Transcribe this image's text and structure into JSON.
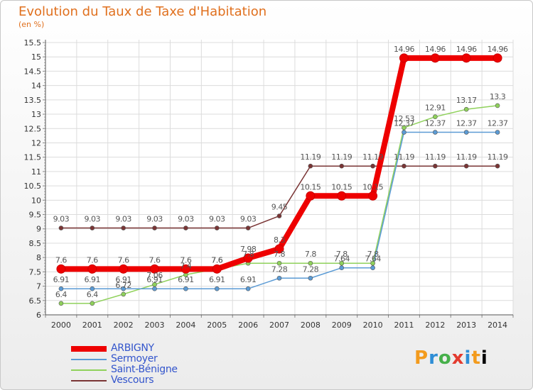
{
  "title": "Evolution du Taux de Taxe d'Habitation",
  "subtitle": "(en %)",
  "brand": {
    "letters": [
      "P",
      "r",
      "o",
      "x",
      "i",
      "t"
    ]
  },
  "chart_data": {
    "type": "line",
    "title": "Evolution du Taux de Taxe d'Habitation",
    "subtitle": "(en %)",
    "x": [
      "2000",
      "2001",
      "2002",
      "2003",
      "2004",
      "2005",
      "2006",
      "2007",
      "2008",
      "2009",
      "2010",
      "2011",
      "2012",
      "2013",
      "2014"
    ],
    "ylim": [
      6,
      15.5
    ],
    "yticks": [
      "6",
      "6.5",
      "7",
      "7.5",
      "8",
      "8.5",
      "9",
      "9.5",
      "10",
      "10.5",
      "11",
      "11.5",
      "12",
      "12.5",
      "13",
      "13.5",
      "14",
      "14.5",
      "15",
      "15.5"
    ],
    "grid": true,
    "legend_position": "bottom-left",
    "series": [
      {
        "name": "ARBIGNY",
        "color": "#ee0000",
        "values": [
          7.6,
          7.6,
          7.6,
          7.6,
          7.6,
          7.6,
          7.98,
          8.3,
          10.15,
          10.15,
          10.15,
          14.96,
          14.96,
          14.96,
          14.96
        ],
        "labels": [
          "7.6",
          "7.6",
          "7.6",
          "7.6",
          "7.6",
          "7.6",
          "7.98",
          "8.3",
          "10.15",
          "10.15",
          "10.15",
          "14.96",
          "14.96",
          "14.96",
          "14.96"
        ]
      },
      {
        "name": "Sermoyer",
        "color": "#5b9bd5",
        "values": [
          6.91,
          6.91,
          6.91,
          6.91,
          6.91,
          6.91,
          6.91,
          7.28,
          7.28,
          7.64,
          7.64,
          12.37,
          12.37,
          12.37,
          12.37
        ],
        "labels": [
          "6.91",
          "6.91",
          "6.91",
          "6.91",
          "6.91",
          "6.91",
          "6.91",
          "7.28",
          "7.28",
          "7.64",
          "7.64",
          "12.37",
          "12.37",
          "12.37",
          "12.37"
        ]
      },
      {
        "name": "Saint-Bénigne",
        "color": "#8fd15b",
        "values": [
          6.4,
          6.4,
          6.72,
          7.06,
          7.4,
          7.6,
          7.8,
          7.8,
          7.8,
          7.8,
          7.8,
          12.53,
          12.91,
          13.17,
          13.3
        ],
        "labels": [
          "6.4",
          "6.4",
          "6.72",
          "7.06",
          "7.4",
          "7.6",
          "7.8",
          "7.8",
          "7.8",
          "7.8",
          "7.8",
          "12.53",
          "12.91",
          "13.17",
          "13.3"
        ]
      },
      {
        "name": "Vescours",
        "color": "#7a3535",
        "values": [
          9.03,
          9.03,
          9.03,
          9.03,
          9.03,
          9.03,
          9.03,
          9.45,
          11.19,
          11.19,
          11.19,
          11.19,
          11.19,
          11.19,
          11.19
        ],
        "labels": [
          "9.03",
          "9.03",
          "9.03",
          "9.03",
          "9.03",
          "9.03",
          "9.03",
          "9.45",
          "11.19",
          "11.19",
          "11.19",
          "11.19",
          "11.19",
          "11.19",
          "11.19"
        ]
      }
    ]
  }
}
